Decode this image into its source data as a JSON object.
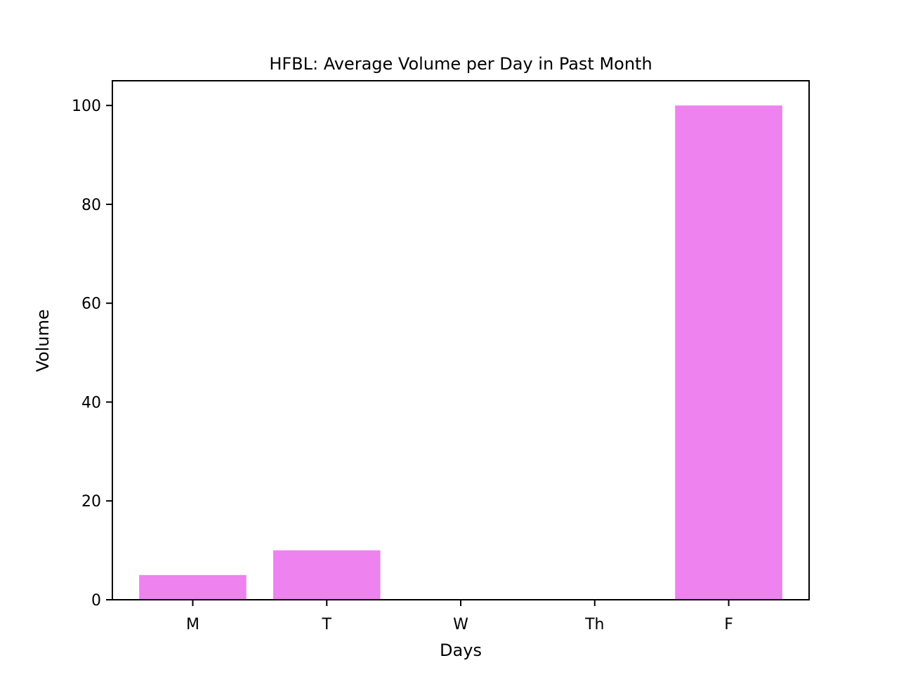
{
  "chart_data": {
    "type": "bar",
    "title": "HFBL: Average Volume per Day in Past Month",
    "xlabel": "Days",
    "ylabel": "Volume",
    "categories": [
      "M",
      "T",
      "W",
      "Th",
      "F"
    ],
    "values": [
      5,
      10,
      0,
      0,
      100
    ],
    "ylim": [
      0,
      105
    ],
    "yticks": [
      0,
      20,
      40,
      60,
      80,
      100
    ],
    "grid": false,
    "bar_color": "#ee82ee"
  }
}
